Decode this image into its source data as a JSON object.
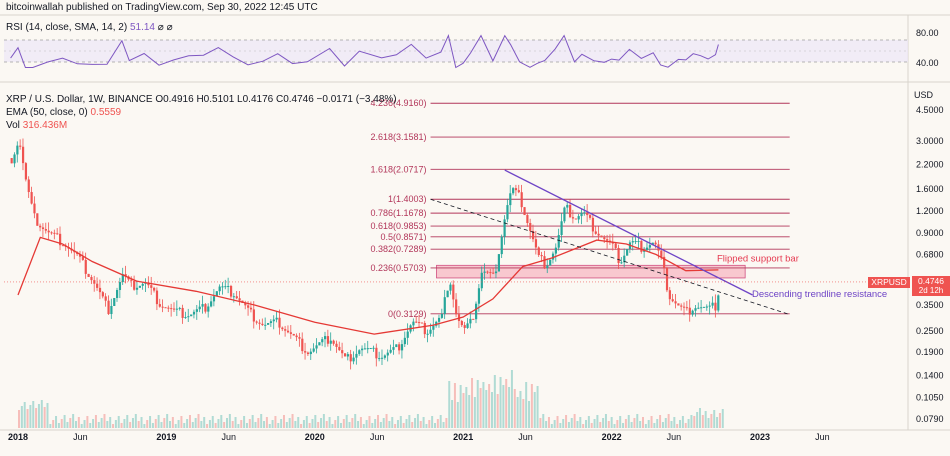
{
  "header": {
    "publisher_line": "bitcoinwallah published on TradingView.com, Sep 30, 2022 12:45 UTC"
  },
  "rsi": {
    "legend": "RSI (14, close, SMA, 14, 2)",
    "value": "51.14",
    "icons": "⌀ ⌀",
    "scale_ticks": [
      "80.00",
      "40.00"
    ],
    "line_color": "#7e57c2"
  },
  "main_legend": {
    "pair_label": "XRP / U.S. Dollar, 1W, BINANCE",
    "ohlc": "O0.4916 H0.5101 L0.4176 C0.4746 −0.0171 (−3.48%)",
    "ema_label": "EMA (50, close, 0)",
    "ema_value": "0.5559",
    "vol_label": "Vol",
    "vol_value": "316.436M"
  },
  "price_axis": {
    "currency": "USD",
    "current_price": "0.4746",
    "countdown": "2d 12h",
    "symbol_badge": "XRPUSD"
  },
  "annotations": {
    "flipped_support": "Flipped support bar",
    "descending_trendline": "Descending trendline resistance"
  },
  "colors": {
    "background": "#fbf8f3",
    "up_candle": "#26a69a",
    "down_candle": "#ef5350",
    "ema_line": "#e53935",
    "fib_line": "#b2365a",
    "trendline": "#6e44c6",
    "support_box": "#f7b8c3"
  },
  "chart_data": {
    "type": "candlestick",
    "title": "XRP / U.S. Dollar, 1W, BINANCE",
    "y_scale": "log",
    "y_ticks": [
      "4.5000",
      "3.0000",
      "2.2000",
      "1.6000",
      "1.2000",
      "0.9000",
      "0.6800",
      "0.3500",
      "0.2500",
      "0.1900",
      "0.1400",
      "0.1050",
      "0.0790"
    ],
    "x_ticks": [
      "2018",
      "Jun",
      "2019",
      "Jun",
      "2020",
      "Jun",
      "2021",
      "Jun",
      "2022",
      "Jun",
      "2023",
      "Jun"
    ],
    "fibonacci_levels": [
      {
        "label": "4.236(4.9160)",
        "value": 4.916
      },
      {
        "label": "2.618(3.1581)",
        "value": 3.1581
      },
      {
        "label": "1.618(2.0717)",
        "value": 2.0717
      },
      {
        "label": "1(1.4003)",
        "value": 1.4003
      },
      {
        "label": "0.786(1.1678)",
        "value": 1.1678
      },
      {
        "label": "0.618(0.9853)",
        "value": 0.9853
      },
      {
        "label": "0.5(0.8571)",
        "value": 0.8571
      },
      {
        "label": "0.382(0.7289)",
        "value": 0.7289
      },
      {
        "label": "0.236(0.5703)",
        "value": 0.5703
      },
      {
        "label": "0(0.3129)",
        "value": 0.3129
      }
    ],
    "support_zone": {
      "low": 0.5,
      "high": 0.59
    },
    "price_path": [
      [
        2017.95,
        2.4
      ],
      [
        2018.0,
        3.1
      ],
      [
        2018.05,
        1.7
      ],
      [
        2018.1,
        1.1
      ],
      [
        2018.2,
        0.9
      ],
      [
        2018.3,
        0.8
      ],
      [
        2018.4,
        0.65
      ],
      [
        2018.5,
        0.48
      ],
      [
        2018.6,
        0.33
      ],
      [
        2018.7,
        0.52
      ],
      [
        2018.75,
        0.45
      ],
      [
        2018.85,
        0.47
      ],
      [
        2018.95,
        0.36
      ],
      [
        2019.05,
        0.32
      ],
      [
        2019.15,
        0.31
      ],
      [
        2019.25,
        0.34
      ],
      [
        2019.35,
        0.44
      ],
      [
        2019.45,
        0.41
      ],
      [
        2019.55,
        0.32
      ],
      [
        2019.65,
        0.27
      ],
      [
        2019.75,
        0.28
      ],
      [
        2019.85,
        0.23
      ],
      [
        2019.95,
        0.19
      ],
      [
        2020.1,
        0.23
      ],
      [
        2020.2,
        0.17
      ],
      [
        2020.3,
        0.2
      ],
      [
        2020.45,
        0.18
      ],
      [
        2020.55,
        0.2
      ],
      [
        2020.65,
        0.28
      ],
      [
        2020.75,
        0.25
      ],
      [
        2020.85,
        0.3
      ],
      [
        2020.9,
        0.52
      ],
      [
        2020.95,
        0.3
      ],
      [
        2021.0,
        0.25
      ],
      [
        2021.05,
        0.28
      ],
      [
        2021.12,
        0.55
      ],
      [
        2021.2,
        0.5
      ],
      [
        2021.28,
        1.2
      ],
      [
        2021.32,
        1.6
      ],
      [
        2021.38,
        1.4
      ],
      [
        2021.45,
        0.9
      ],
      [
        2021.5,
        0.65
      ],
      [
        2021.55,
        0.6
      ],
      [
        2021.62,
        0.75
      ],
      [
        2021.68,
        1.25
      ],
      [
        2021.75,
        1.1
      ],
      [
        2021.8,
        1.18
      ],
      [
        2021.88,
        0.95
      ],
      [
        2021.95,
        0.82
      ],
      [
        2022.0,
        0.75
      ],
      [
        2022.05,
        0.62
      ],
      [
        2022.12,
        0.8
      ],
      [
        2022.2,
        0.75
      ],
      [
        2022.28,
        0.8
      ],
      [
        2022.33,
        0.62
      ],
      [
        2022.38,
        0.4
      ],
      [
        2022.45,
        0.34
      ],
      [
        2022.5,
        0.32
      ],
      [
        2022.55,
        0.35
      ],
      [
        2022.6,
        0.34
      ],
      [
        2022.65,
        0.33
      ],
      [
        2022.7,
        0.35
      ],
      [
        2022.72,
        0.47
      ]
    ],
    "ema50_path": [
      [
        2018.0,
        0.4
      ],
      [
        2018.15,
        0.85
      ],
      [
        2018.3,
        0.78
      ],
      [
        2018.5,
        0.62
      ],
      [
        2018.8,
        0.48
      ],
      [
        2019.2,
        0.42
      ],
      [
        2019.6,
        0.35
      ],
      [
        2020.0,
        0.28
      ],
      [
        2020.4,
        0.24
      ],
      [
        2020.8,
        0.27
      ],
      [
        2021.0,
        0.3
      ],
      [
        2021.2,
        0.38
      ],
      [
        2021.4,
        0.58
      ],
      [
        2021.6,
        0.65
      ],
      [
        2021.9,
        0.82
      ],
      [
        2022.1,
        0.78
      ],
      [
        2022.3,
        0.68
      ],
      [
        2022.5,
        0.55
      ],
      [
        2022.72,
        0.5559
      ]
    ],
    "rsi_current": 51.14
  }
}
